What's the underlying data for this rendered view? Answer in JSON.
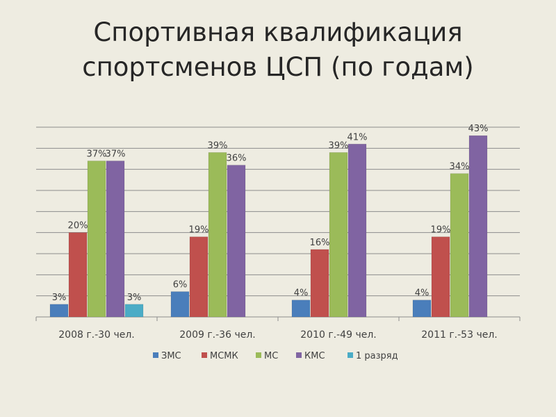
{
  "slide": {
    "title_line1": "Спортивная квалификация",
    "title_line2": "спортсменов ЦСП (по годам)"
  },
  "chart_data": {
    "type": "bar",
    "categories": [
      "2008 г.-30 чел.",
      "2009 г.-36 чел.",
      "2010 г.-49 чел.",
      "2011 г.-53 чел."
    ],
    "series": [
      {
        "name": "ЗМС",
        "color": "#4a7ebb",
        "values": [
          3,
          6,
          4,
          4
        ]
      },
      {
        "name": "МСМК",
        "color": "#c0504d",
        "values": [
          20,
          19,
          16,
          19
        ]
      },
      {
        "name": "МС",
        "color": "#9bbb59",
        "values": [
          37,
          39,
          39,
          34
        ]
      },
      {
        "name": "КМС",
        "color": "#8064a2",
        "values": [
          37,
          36,
          41,
          43
        ]
      },
      {
        "name": "1 разряд",
        "color": "#4bacc6",
        "values": [
          3,
          null,
          null,
          null
        ]
      }
    ],
    "value_suffix": "%",
    "ylim": [
      0,
      45
    ],
    "grid": true,
    "legend": "bottom"
  }
}
